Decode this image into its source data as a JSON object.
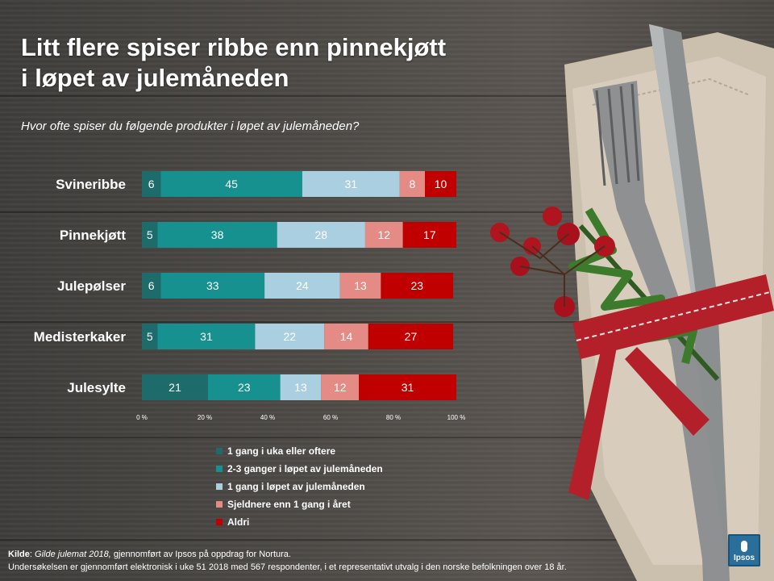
{
  "title_line1": "Litt flere spiser ribbe enn pinnekjøtt",
  "title_line2": "i løpet av julemåneden",
  "subtitle": "Hvor ofte spiser du følgende produkter i løpet av julemåneden?",
  "chart_data": {
    "type": "bar",
    "orientation": "horizontal",
    "stacked": true,
    "categories": [
      "Svineribbe",
      "Pinnekjøtt",
      "Julepølser",
      "Medisterkaker",
      "Julesylte"
    ],
    "series": [
      {
        "name": "1 gang i uka eller  oftere",
        "color": "#1d6b6b",
        "values": [
          6,
          5,
          6,
          5,
          21
        ]
      },
      {
        "name": "2-3 ganger i løpet av julemåneden",
        "color": "#16918f",
        "values": [
          45,
          38,
          33,
          31,
          23
        ]
      },
      {
        "name": "1 gang i løpet av julemåneden",
        "color": "#a9cfe1",
        "values": [
          31,
          28,
          24,
          22,
          13
        ]
      },
      {
        "name": "Sjeldnere enn 1 gang i året",
        "color": "#e58b86",
        "values": [
          8,
          12,
          13,
          14,
          12
        ]
      },
      {
        "name": "Aldri",
        "color": "#c00000",
        "values": [
          10,
          17,
          23,
          27,
          31
        ]
      }
    ],
    "x_ticks": [
      "0 %",
      "20 %",
      "40 %",
      "60 %",
      "80 %",
      "100 %"
    ],
    "xlim": [
      0,
      100
    ],
    "legend_position": "bottom"
  },
  "footer": {
    "source_label": "Kilde",
    "source_title": "Gilde julemat 2018,",
    "source_text": " gjennomført av Ipsos på oppdrag for Nortura.",
    "line2": "Undersøkelsen er gjennomført elektronisk i uke 51 2018 med 567 respondenter,  i et representativt utvalg i den norske befolkningen over 18 år."
  },
  "logo_text": "Ipsos"
}
